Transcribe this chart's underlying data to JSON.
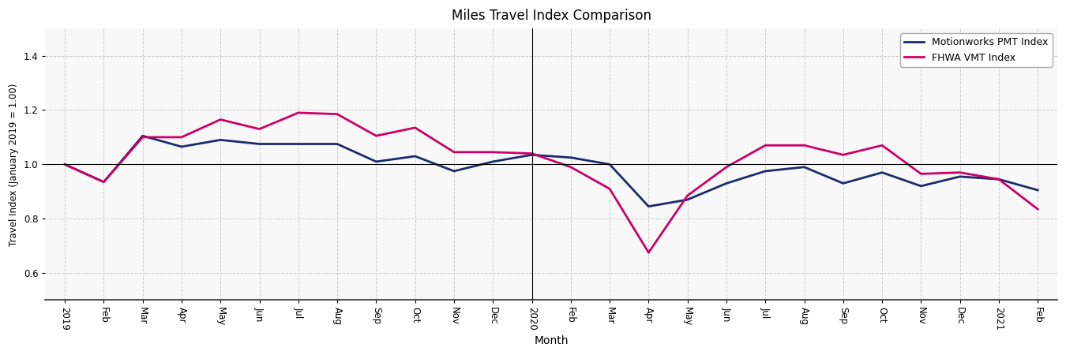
{
  "title": "Miles Travel Index Comparison",
  "xlabel": "Month",
  "ylabel": "Travel Index (January 2019 = 1.00)",
  "ylim": [
    0.5,
    1.5
  ],
  "yticks": [
    0.6,
    0.8,
    1.0,
    1.2,
    1.4
  ],
  "legend_labels": [
    "Motionworks PMT Index",
    "FHWA VMT Index"
  ],
  "pmt_color": "#1c2a6b",
  "vmt_color": "#cc0066",
  "reference_line_y": 1.0,
  "vertical_line_x": 12,
  "tick_labels": [
    "2019",
    "Feb",
    "Mar",
    "Apr",
    "May",
    "Jun",
    "Jul",
    "Aug",
    "Sep",
    "Oct",
    "Nov",
    "Dec",
    "2020",
    "Feb",
    "Mar",
    "Apr",
    "May",
    "Jun",
    "Jul",
    "Aug",
    "Sep",
    "Oct",
    "Nov",
    "Dec",
    "2021",
    "Feb"
  ],
  "pmt_values": [
    1.0,
    0.935,
    1.105,
    1.065,
    1.09,
    1.075,
    1.075,
    1.075,
    1.01,
    1.03,
    0.975,
    1.01,
    1.035,
    1.025,
    1.0,
    0.845,
    0.87,
    0.93,
    0.975,
    0.99,
    0.93,
    0.97,
    0.92,
    0.955,
    0.945,
    0.905
  ],
  "vmt_values": [
    1.0,
    0.935,
    1.1,
    1.1,
    1.165,
    1.13,
    1.19,
    1.185,
    1.105,
    1.135,
    1.045,
    1.045,
    1.04,
    0.99,
    0.91,
    0.675,
    0.885,
    0.99,
    1.07,
    1.07,
    1.035,
    1.07,
    0.965,
    0.97,
    0.945,
    0.835
  ],
  "background_color": "#f8f8f8",
  "grid_color": "#cccccc"
}
